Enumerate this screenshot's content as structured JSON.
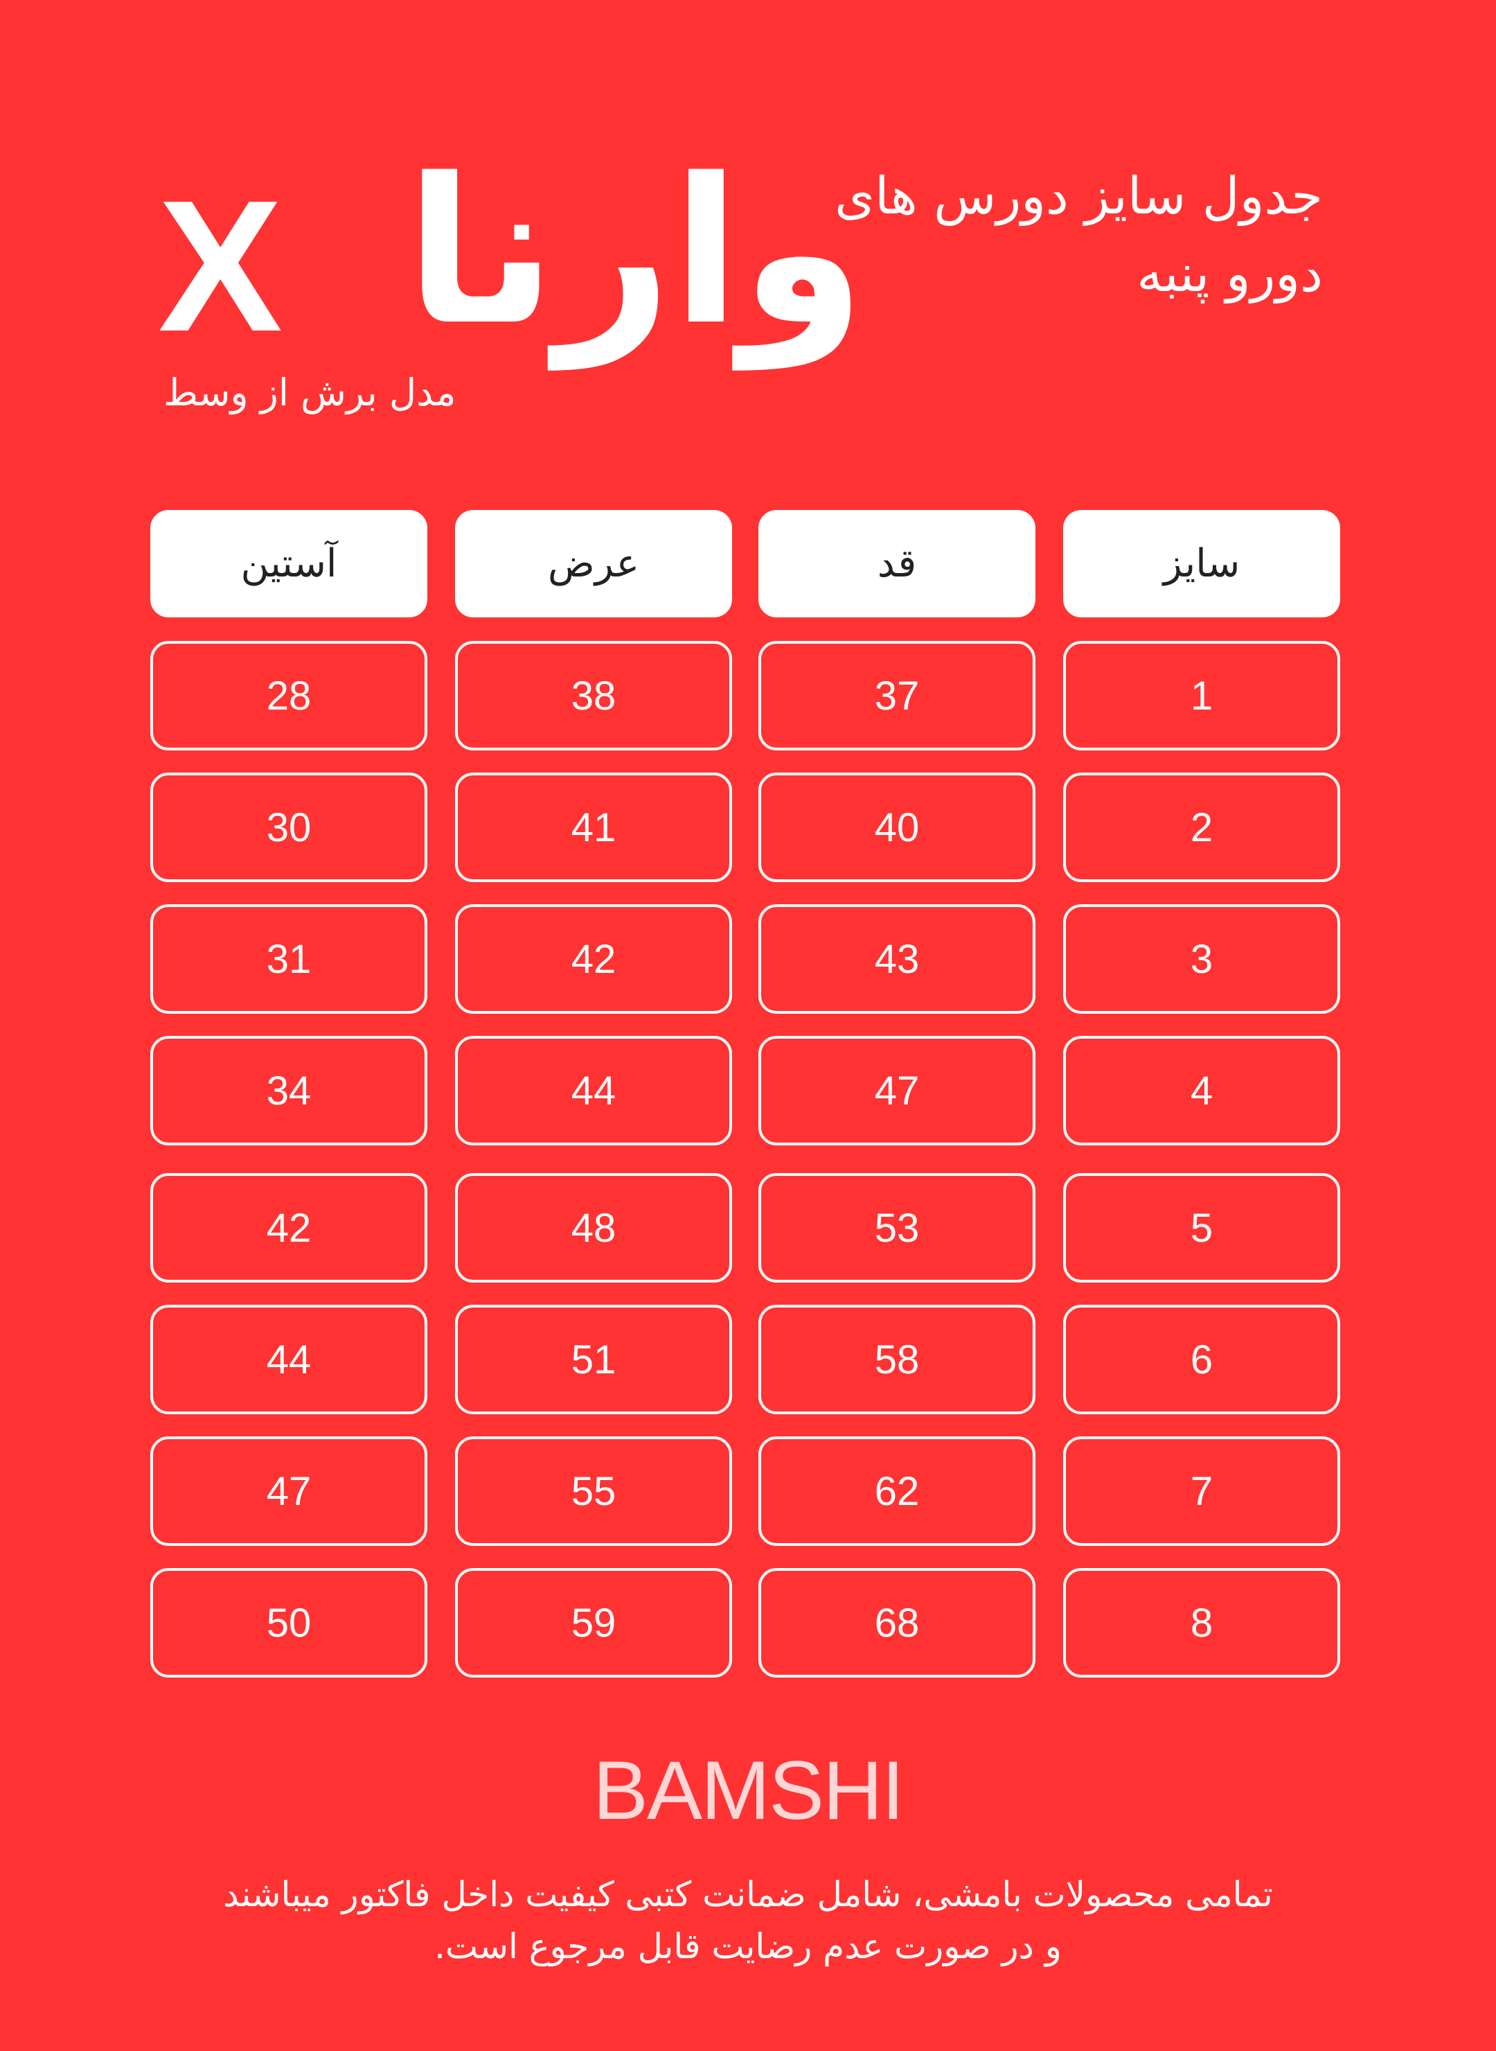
{
  "header": {
    "title_line1": "جدول سایز دورس های",
    "title_line2": "دورو پنبه",
    "brand_name": "وارنا",
    "brand_mark": "X",
    "subtitle": "مدل برش از وسط"
  },
  "table": {
    "columns": [
      "سایز",
      "قد",
      "عرض",
      "آستین"
    ],
    "rows": [
      [
        "1",
        "37",
        "38",
        "28"
      ],
      [
        "2",
        "40",
        "41",
        "30"
      ],
      [
        "3",
        "43",
        "42",
        "31"
      ],
      [
        "4",
        "47",
        "44",
        "34"
      ],
      [
        "5",
        "53",
        "48",
        "42"
      ],
      [
        "6",
        "58",
        "51",
        "44"
      ],
      [
        "7",
        "62",
        "55",
        "47"
      ],
      [
        "8",
        "68",
        "59",
        "50"
      ]
    ]
  },
  "footer": {
    "logo": "BAMSHI",
    "line1": "تمامی محصولات بامشی، شامل ضمانت کتبی کیفیت داخل فاکتور میباشند",
    "line2": "و در صورت عدم رضایت قابل مرجوع است."
  },
  "colors": {
    "background": "#FF3333",
    "logo": "#FFD6D6",
    "header_cell": "#FFFFFF"
  }
}
